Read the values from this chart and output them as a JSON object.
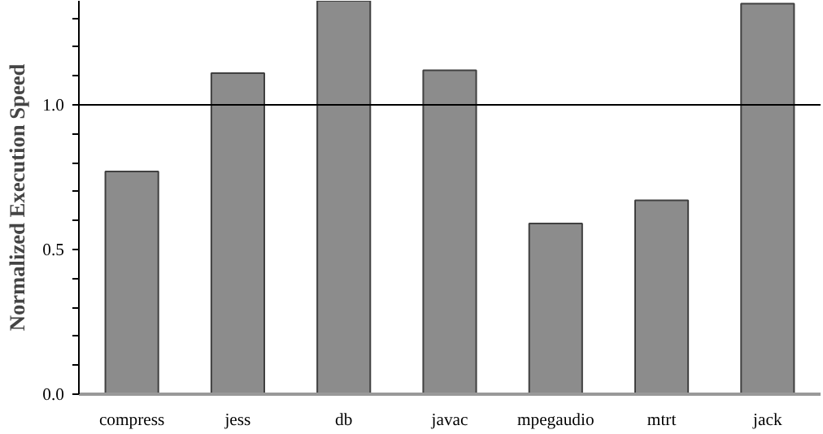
{
  "chart_data": {
    "type": "bar",
    "ylabel": "Normalized Execution Speed",
    "categories": [
      "compress",
      "jess",
      "db",
      "javac",
      "mpegaudio",
      "mtrt",
      "jack"
    ],
    "values": [
      0.77,
      1.11,
      1.36,
      1.12,
      0.59,
      0.67,
      1.35
    ],
    "color": "#8c8c8c",
    "ylim": [
      0,
      1.36
    ],
    "yticks": [
      {
        "value": 0.0,
        "label": "0.0"
      },
      {
        "value": 0.1,
        "label": null
      },
      {
        "value": 0.2,
        "label": null
      },
      {
        "value": 0.3,
        "label": null
      },
      {
        "value": 0.4,
        "label": null
      },
      {
        "value": 0.5,
        "label": "0.5"
      },
      {
        "value": 0.6,
        "label": null
      },
      {
        "value": 0.7,
        "label": null
      },
      {
        "value": 0.8,
        "label": null
      },
      {
        "value": 0.9,
        "label": null
      },
      {
        "value": 1.0,
        "label": "1.0"
      },
      {
        "value": 1.1,
        "label": null
      },
      {
        "value": 1.2,
        "label": null
      },
      {
        "value": 1.3,
        "label": null
      }
    ],
    "ref_lines": [
      {
        "axis": "y",
        "value": 1.0,
        "color": "#000000"
      }
    ],
    "grid": false
  }
}
